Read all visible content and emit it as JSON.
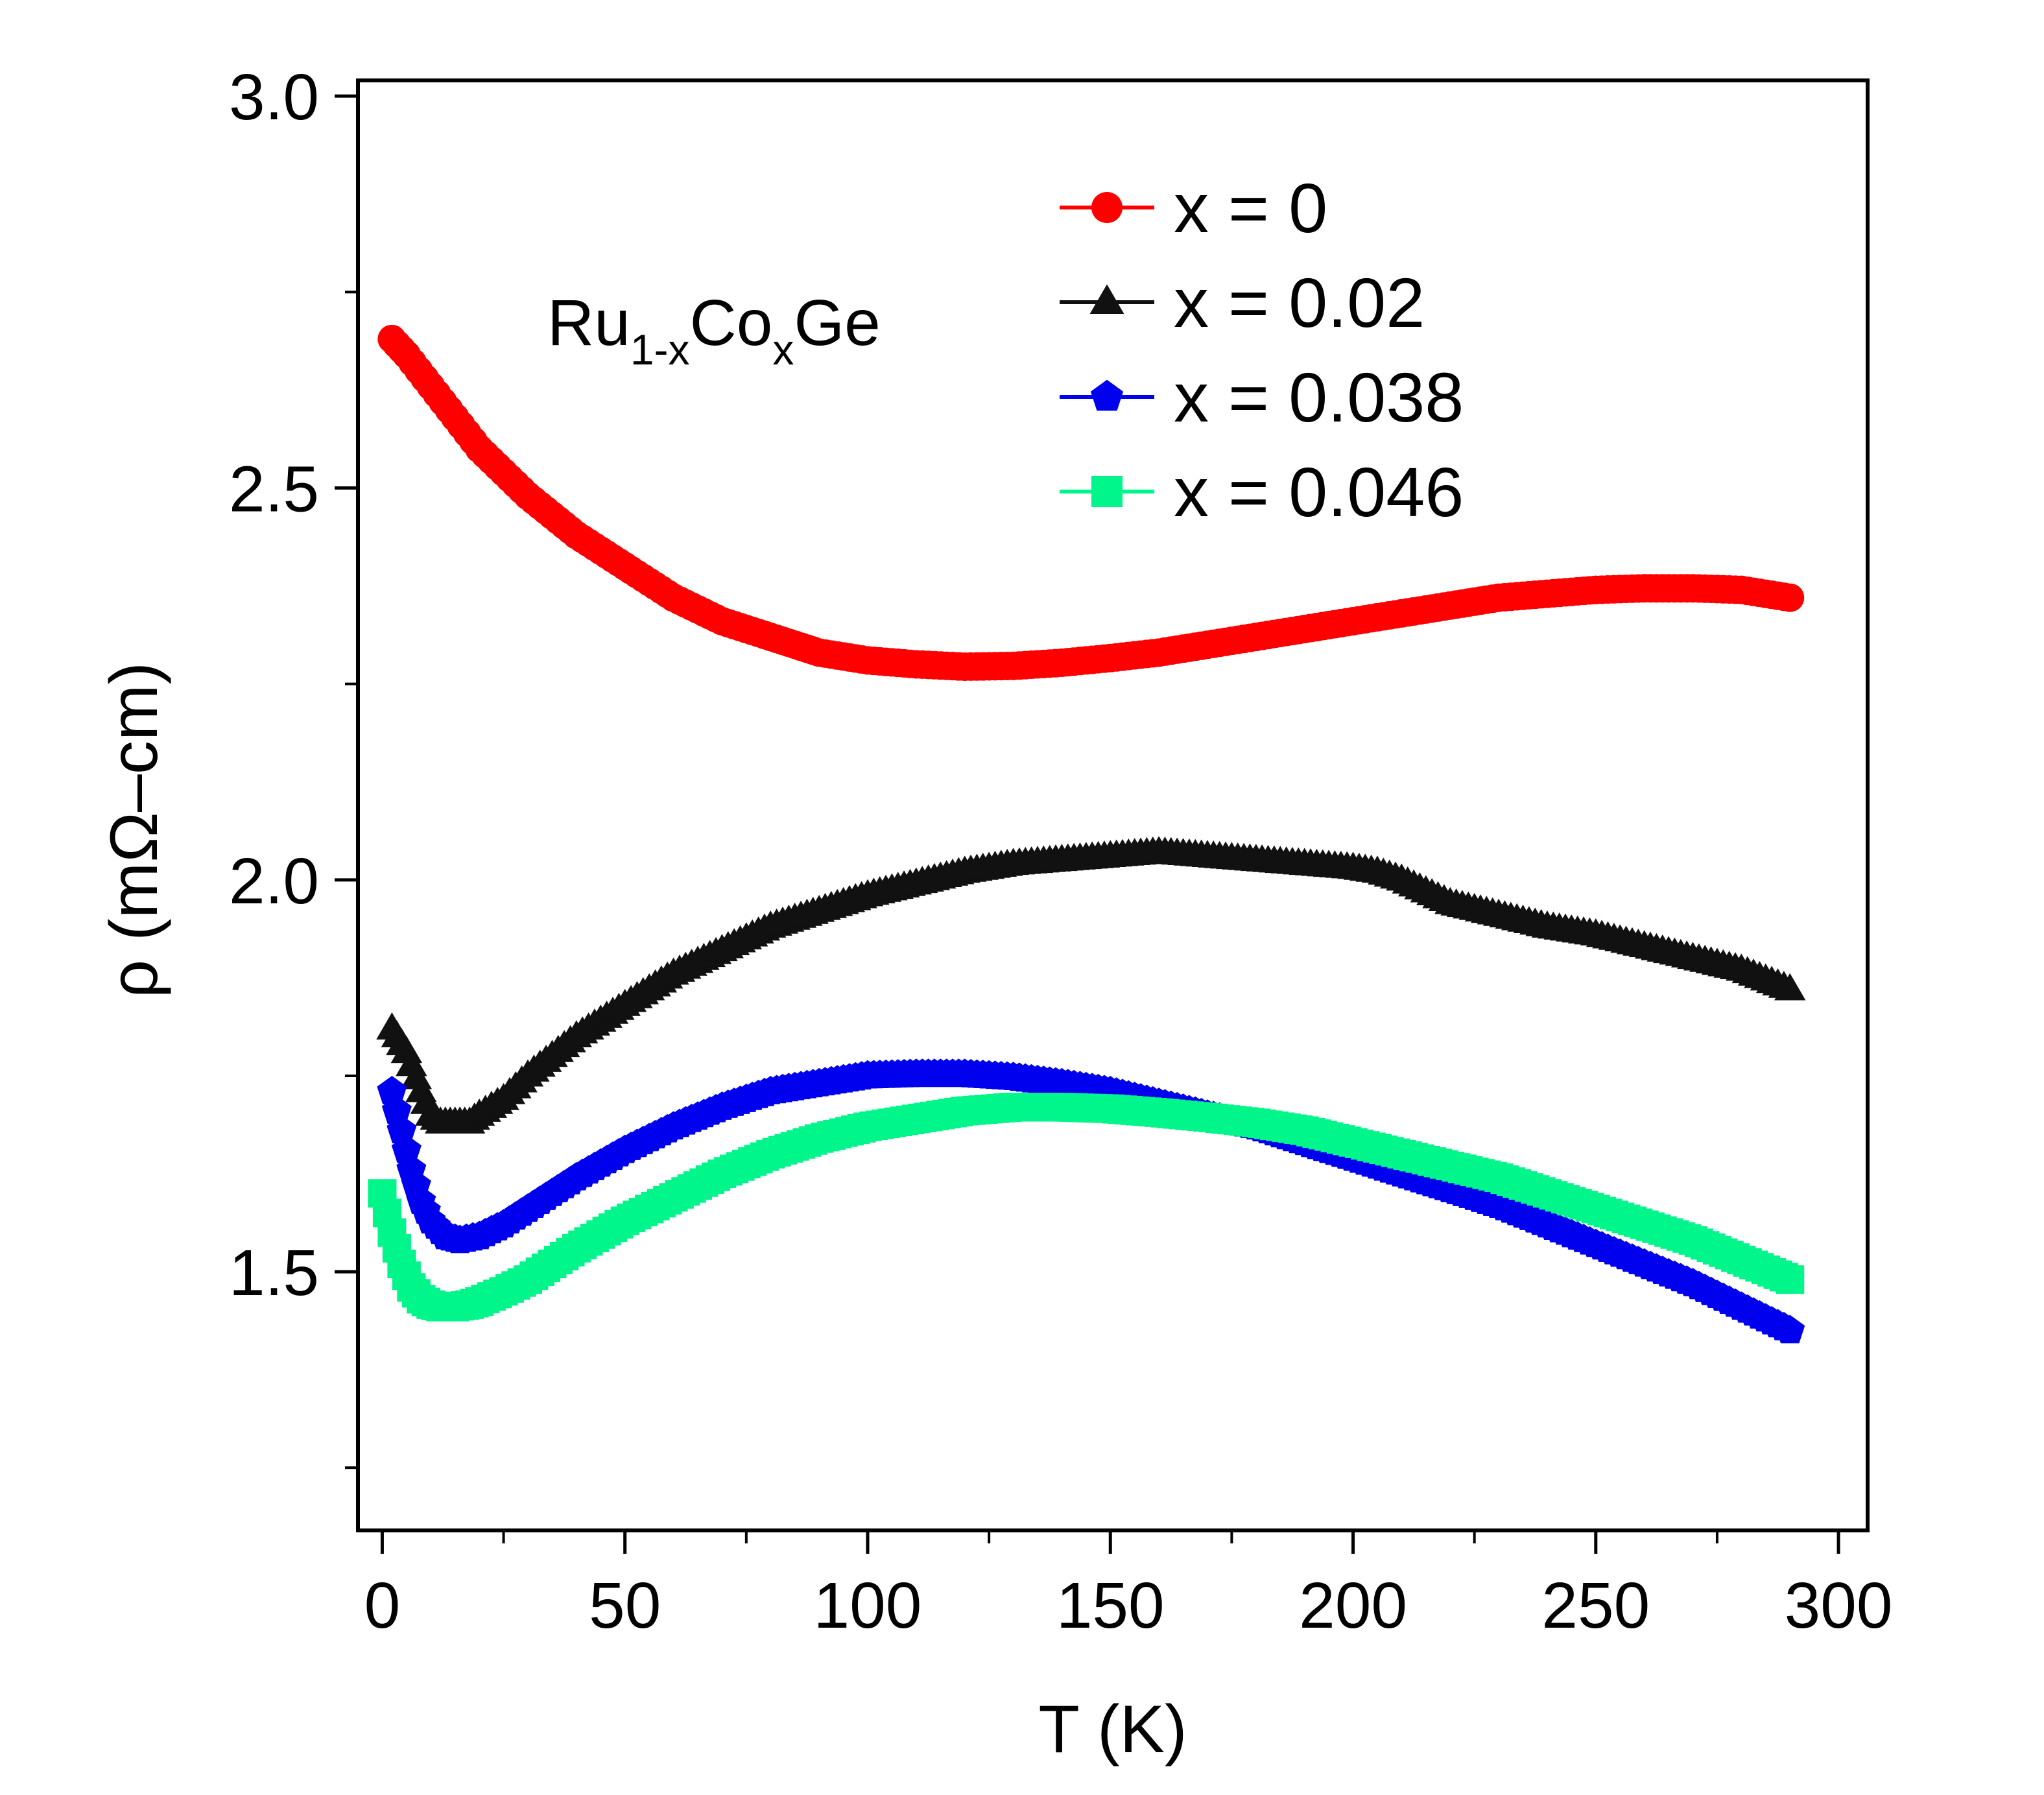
{
  "chart_data": {
    "type": "scatter",
    "title": "",
    "xlabel": "T (K)",
    "ylabel": "ρ (mΩ–cm)",
    "xlim": [
      -5,
      306
    ],
    "ylim": [
      1.17,
      3.02
    ],
    "xticks": [
      0,
      50,
      100,
      150,
      200,
      250,
      300
    ],
    "xtick_labels": [
      "0",
      "50",
      "100",
      "150",
      "200",
      "250",
      "300"
    ],
    "yticks": [
      1.5,
      2.0,
      2.5,
      3.0
    ],
    "ytick_labels": [
      "1.5",
      "2.0",
      "2.5",
      "3.0"
    ],
    "grid": false,
    "legend_position": "top-right",
    "annotation": {
      "base": "Ru",
      "sub1": "1-x",
      "mid": "Co",
      "sub2": "x",
      "end": "Ge"
    },
    "series": [
      {
        "name": "x = 0",
        "color": "#ff0000",
        "marker": "circle",
        "x": [
          2,
          5,
          10,
          15,
          20,
          30,
          40,
          50,
          60,
          70,
          80,
          90,
          100,
          110,
          120,
          130,
          140,
          150,
          160,
          170,
          180,
          190,
          200,
          210,
          220,
          230,
          240,
          250,
          260,
          270,
          280,
          290
        ],
        "y": [
          2.69,
          2.67,
          2.63,
          2.59,
          2.55,
          2.49,
          2.44,
          2.4,
          2.36,
          2.33,
          2.31,
          2.29,
          2.28,
          2.275,
          2.272,
          2.273,
          2.277,
          2.283,
          2.29,
          2.3,
          2.31,
          2.32,
          2.33,
          2.34,
          2.35,
          2.36,
          2.365,
          2.37,
          2.372,
          2.372,
          2.37,
          2.36
        ]
      },
      {
        "name": "x = 0.02",
        "color": "#111111",
        "marker": "triangle",
        "x": [
          2,
          5,
          8,
          10,
          12,
          15,
          18,
          20,
          25,
          30,
          40,
          50,
          60,
          70,
          80,
          90,
          100,
          110,
          120,
          130,
          140,
          150,
          160,
          170,
          180,
          190,
          200,
          205,
          210,
          215,
          220,
          230,
          240,
          250,
          260,
          270,
          280,
          290
        ],
        "y": [
          1.81,
          1.78,
          1.73,
          1.7,
          1.69,
          1.69,
          1.69,
          1.7,
          1.72,
          1.75,
          1.8,
          1.84,
          1.88,
          1.91,
          1.94,
          1.96,
          1.98,
          1.995,
          2.01,
          2.02,
          2.025,
          2.03,
          2.035,
          2.03,
          2.025,
          2.02,
          2.015,
          2.01,
          2.0,
          1.985,
          1.97,
          1.955,
          1.94,
          1.93,
          1.915,
          1.9,
          1.885,
          1.86
        ]
      },
      {
        "name": "x = 0.038",
        "color": "#0000ee",
        "marker": "pentagon",
        "x": [
          2,
          4,
          6,
          8,
          10,
          13,
          16,
          20,
          25,
          30,
          40,
          50,
          60,
          70,
          80,
          90,
          100,
          110,
          120,
          130,
          140,
          150,
          160,
          170,
          180,
          190,
          200,
          210,
          220,
          230,
          240,
          250,
          260,
          270,
          280,
          290
        ],
        "y": [
          1.73,
          1.68,
          1.63,
          1.59,
          1.565,
          1.545,
          1.54,
          1.545,
          1.56,
          1.58,
          1.62,
          1.655,
          1.685,
          1.71,
          1.73,
          1.74,
          1.75,
          1.752,
          1.752,
          1.748,
          1.74,
          1.73,
          1.715,
          1.7,
          1.685,
          1.665,
          1.645,
          1.625,
          1.605,
          1.585,
          1.56,
          1.535,
          1.51,
          1.485,
          1.455,
          1.425
        ]
      },
      {
        "name": "x = 0.046",
        "color": "#00f58a",
        "marker": "square",
        "x": [
          0,
          2,
          4,
          6,
          8,
          10,
          12,
          15,
          18,
          20,
          25,
          30,
          40,
          50,
          60,
          70,
          80,
          90,
          100,
          110,
          120,
          130,
          140,
          150,
          160,
          170,
          180,
          190,
          200,
          210,
          220,
          230,
          240,
          250,
          260,
          270,
          280,
          290
        ],
        "y": [
          1.6,
          1.55,
          1.51,
          1.48,
          1.465,
          1.458,
          1.455,
          1.455,
          1.458,
          1.462,
          1.475,
          1.49,
          1.53,
          1.565,
          1.595,
          1.625,
          1.65,
          1.67,
          1.685,
          1.695,
          1.705,
          1.71,
          1.71,
          1.708,
          1.703,
          1.697,
          1.69,
          1.68,
          1.665,
          1.65,
          1.635,
          1.62,
          1.6,
          1.58,
          1.56,
          1.54,
          1.515,
          1.49
        ]
      }
    ]
  }
}
